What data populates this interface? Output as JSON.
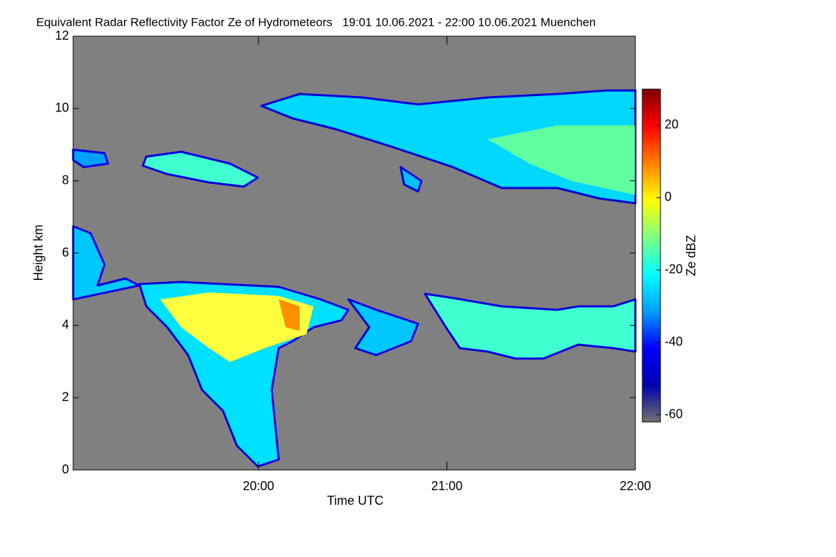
{
  "chart_data": {
    "type": "heatmap",
    "title": "Equivalent Radar Reflectivity Factor Ze of Hydrometeors   19:01 10.06.2021 - 22:00 10.06.2021 Muenchen",
    "x_label": "Time UTC",
    "y_label": "Height km",
    "colorbar_label": "Ze dBZ",
    "xlim": [
      "19:01",
      "22:00"
    ],
    "xticks": [
      "20:00",
      "21:00",
      "22:00"
    ],
    "ylim": [
      0,
      12
    ],
    "yticks": [
      0,
      2,
      4,
      6,
      8,
      10,
      12
    ],
    "clim": [
      -62,
      30
    ],
    "cticks": [
      -60,
      -40,
      -20,
      0,
      20
    ],
    "background": "#808080",
    "colormap": [
      "#707070",
      "#0000b0",
      "#0000ff",
      "#00a0ff",
      "#00ffff",
      "#80ff80",
      "#ffff00",
      "#ff8000",
      "#ff0000",
      "#800000"
    ]
  }
}
